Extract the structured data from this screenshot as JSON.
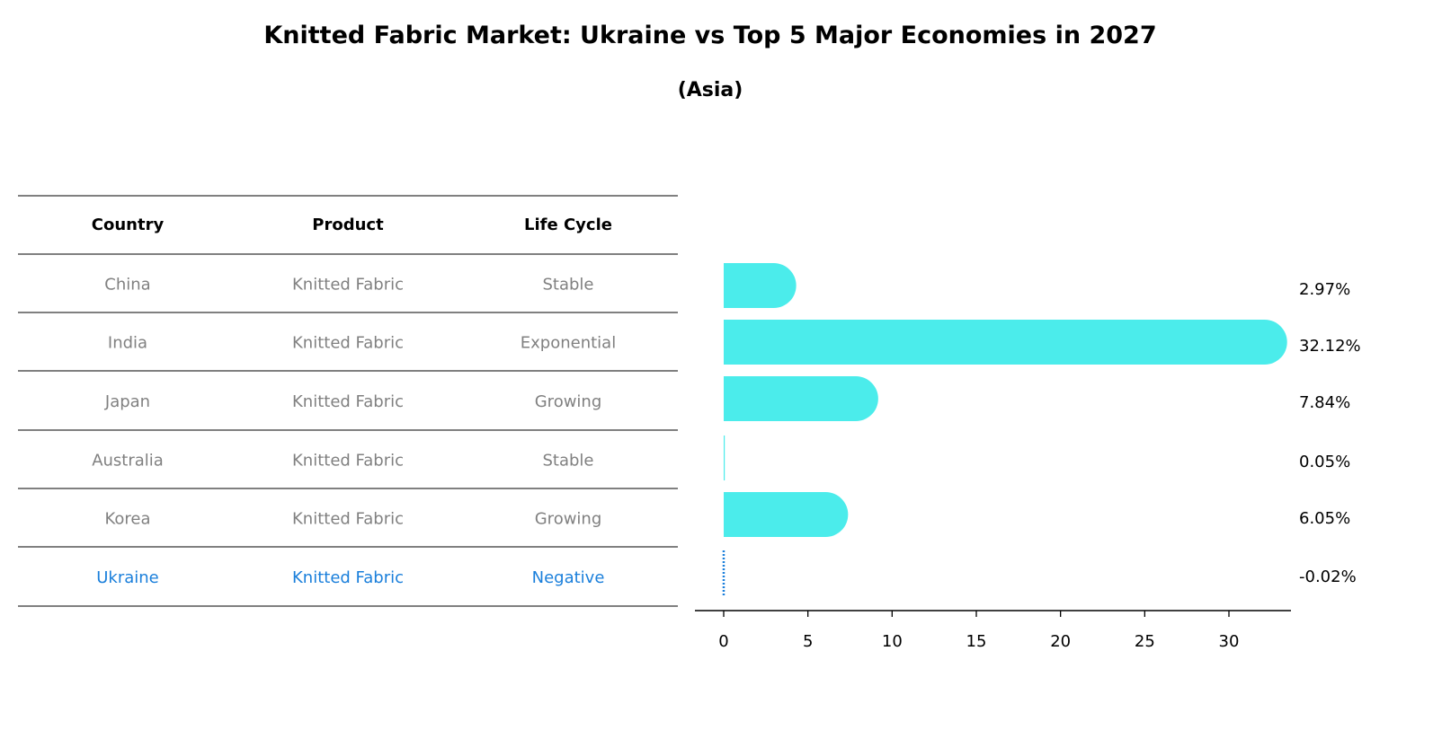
{
  "chart_data": {
    "type": "bar",
    "orientation": "horizontal",
    "title": "Knitted Fabric Market: Ukraine vs Top 5 Major Economies in 2027",
    "subtitle": "(Asia)",
    "categories": [
      "China",
      "India",
      "Japan",
      "Australia",
      "Korea",
      "Ukraine"
    ],
    "values": [
      2.97,
      32.12,
      7.84,
      0.05,
      6.05,
      -0.02
    ],
    "value_labels": [
      "2.97%",
      "32.12%",
      "7.84%",
      "0.05%",
      "6.05%",
      "-0.02%"
    ],
    "xlim": [
      -1.7,
      33.8
    ],
    "xticks": [
      0,
      5,
      10,
      15,
      20,
      25,
      30
    ],
    "xlabel": "",
    "ylabel": "",
    "bar_color": "#4beceb",
    "highlight_color": "#1a7fdb",
    "table": {
      "headers": [
        "Country",
        "Product",
        "Life Cycle"
      ],
      "rows": [
        [
          "China",
          "Knitted Fabric",
          "Stable"
        ],
        [
          "India",
          "Knitted Fabric",
          "Exponential"
        ],
        [
          "Japan",
          "Knitted Fabric",
          "Growing"
        ],
        [
          "Australia",
          "Knitted Fabric",
          "Stable"
        ],
        [
          "Korea",
          "Knitted Fabric",
          "Growing"
        ],
        [
          "Ukraine",
          "Knitted Fabric",
          "Negative"
        ]
      ]
    }
  }
}
